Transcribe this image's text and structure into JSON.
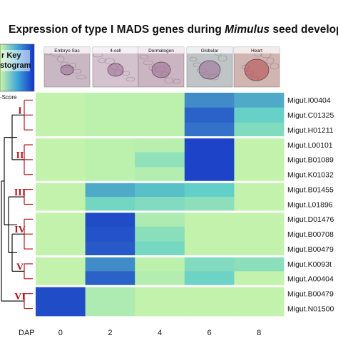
{
  "title": {
    "prefix": "Expression of type I MADS genes during ",
    "italic": "Mimulus",
    "suffix": " seed developm"
  },
  "color_key": {
    "line1": "r Key",
    "line2": "stogram",
    "zscore_label": "-Score"
  },
  "stages": [
    "Embryo Sac",
    "4-cell",
    "Dermatogen",
    "Globular",
    "Heart"
  ],
  "clades": [
    "I",
    "II",
    "III",
    "IV",
    "V",
    "VI"
  ],
  "colors": {
    "low": "#cdf6a8",
    "high": "#1433c8",
    "clade_red": "#b0171f"
  },
  "chart_data": {
    "type": "heatmap",
    "title": "Expression of type I MADS genes during Mimulus seed developm",
    "xlabel": "DAP",
    "x": [
      "0",
      "2",
      "4",
      "6",
      "8"
    ],
    "rows": [
      {
        "gene": "Migut.I00404",
        "clade": "I",
        "values": [
          0.05,
          0.08,
          0.08,
          0.72,
          0.62
        ]
      },
      {
        "gene": "Migut.C01325",
        "clade": "I",
        "values": [
          0.05,
          0.08,
          0.08,
          0.85,
          0.48
        ]
      },
      {
        "gene": "Migut.H01211",
        "clade": "I",
        "values": [
          0.05,
          0.08,
          0.08,
          0.8,
          0.36
        ]
      },
      {
        "gene": "Migut.L00101",
        "clade": "II",
        "values": [
          0.05,
          0.08,
          0.1,
          0.95,
          0.05
        ]
      },
      {
        "gene": "Migut.B01089",
        "clade": "II",
        "values": [
          0.05,
          0.08,
          0.28,
          0.95,
          0.05
        ]
      },
      {
        "gene": "Migut.K01032",
        "clade": "II",
        "values": [
          0.05,
          0.08,
          0.12,
          0.95,
          0.05
        ]
      },
      {
        "gene": "Migut.B01455",
        "clade": "III",
        "values": [
          0.05,
          0.62,
          0.55,
          0.5,
          0.05
        ]
      },
      {
        "gene": "Migut.L01896",
        "clade": "III",
        "values": [
          0.05,
          0.42,
          0.35,
          0.3,
          0.05
        ]
      },
      {
        "gene": "Migut.D01476",
        "clade": "IV",
        "values": [
          0.05,
          0.92,
          0.15,
          0.05,
          0.05
        ]
      },
      {
        "gene": "Migut.B00708",
        "clade": "IV",
        "values": [
          0.05,
          0.9,
          0.32,
          0.05,
          0.05
        ]
      },
      {
        "gene": "Migut.B00479",
        "clade": "IV",
        "values": [
          0.05,
          0.88,
          0.4,
          0.05,
          0.05
        ]
      },
      {
        "gene": "Migut.K0093t",
        "clade": "V",
        "values": [
          0.05,
          0.72,
          0.08,
          0.35,
          0.3
        ]
      },
      {
        "gene": "Migut.A00404",
        "clade": "V",
        "values": [
          0.05,
          0.85,
          0.12,
          0.45,
          0.05
        ]
      },
      {
        "gene": "Migut.B00479",
        "clade": "VI",
        "values": [
          0.92,
          0.15,
          0.05,
          0.05,
          0.05
        ]
      },
      {
        "gene": "Migut.N01500",
        "clade": "VI",
        "values": [
          0.92,
          0.15,
          0.05,
          0.05,
          0.05
        ]
      }
    ]
  }
}
